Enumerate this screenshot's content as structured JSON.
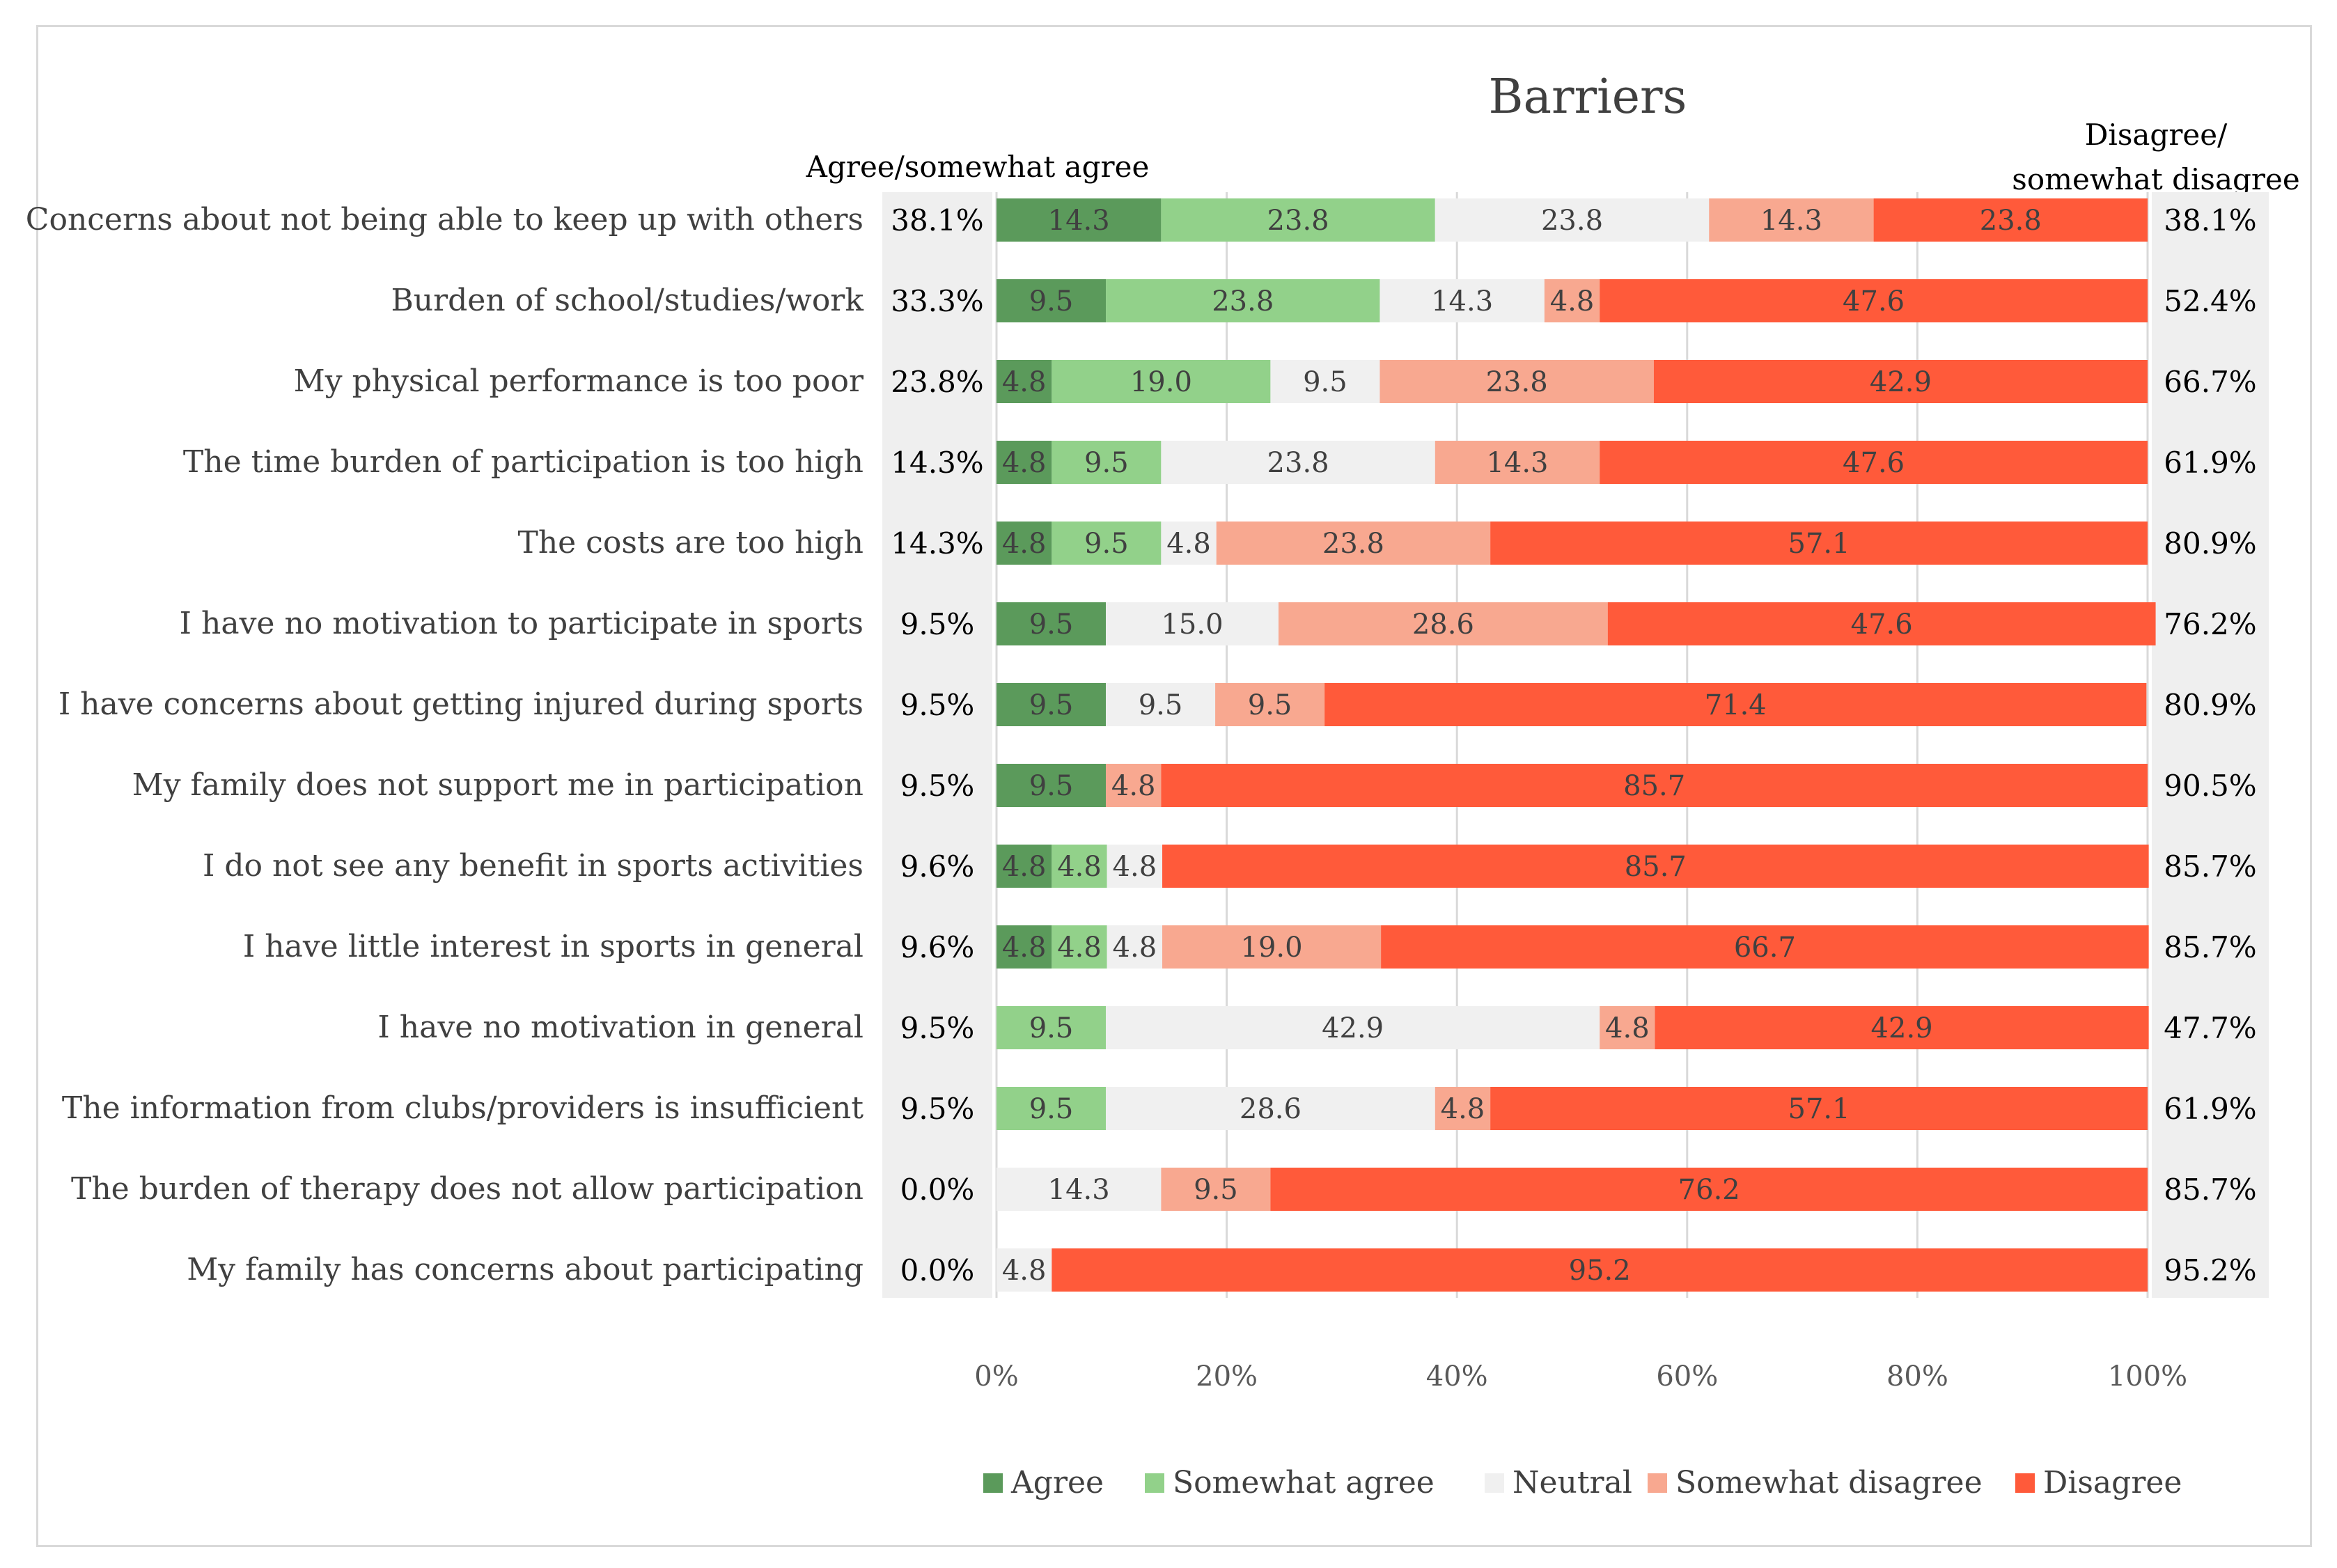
{
  "chart_data": {
    "type": "bar",
    "orientation": "horizontal-stacked-100",
    "title": "Barriers",
    "left_column_header": "Agree/somewhat agree",
    "right_column_header_lines": [
      "Disagree/",
      "somewhat disagree"
    ],
    "xlim": [
      0,
      100
    ],
    "x_ticks": [
      "0%",
      "20%",
      "40%",
      "60%",
      "80%",
      "100%"
    ],
    "grid": true,
    "legend_position": "bottom",
    "categories": [
      "Concerns about not being able to keep up with others",
      "Burden of school/studies/work",
      "My physical performance is too poor",
      "The time burden of participation is too high",
      "The costs are too high",
      "I have no motivation to participate in sports",
      "I have concerns about getting injured during sports",
      "My family does not support me in participation",
      "I do not see any benefit in sports activities",
      "I have little interest in sports in general",
      "I have no motivation in general",
      "The information from clubs/providers is insufficient",
      "The burden of therapy does not allow participation",
      "My family has concerns about participating"
    ],
    "series": [
      {
        "name": "Agree",
        "color": "#5b9a5b",
        "values": [
          14.3,
          9.5,
          4.8,
          4.8,
          4.8,
          9.5,
          9.5,
          9.5,
          4.8,
          4.8,
          0,
          0,
          0,
          0
        ]
      },
      {
        "name": "Somewhat agree",
        "color": "#92d18a",
        "values": [
          23.8,
          23.8,
          19.0,
          9.5,
          9.5,
          0,
          0,
          0,
          4.8,
          4.8,
          9.5,
          9.5,
          0,
          0
        ]
      },
      {
        "name": "Neutral",
        "color": "#f0f0f0",
        "values": [
          23.8,
          14.3,
          9.5,
          23.8,
          4.8,
          15.0,
          9.5,
          0,
          4.8,
          4.8,
          42.9,
          28.6,
          14.3,
          4.8
        ]
      },
      {
        "name": "Somewhat disagree",
        "color": "#f8a890",
        "values": [
          14.3,
          4.8,
          23.8,
          14.3,
          23.8,
          28.6,
          9.5,
          4.8,
          0,
          19.0,
          4.8,
          4.8,
          9.5,
          0
        ]
      },
      {
        "name": "Disagree",
        "color": "#ff5a3a",
        "values": [
          23.8,
          47.6,
          42.9,
          47.6,
          57.1,
          47.6,
          71.4,
          85.7,
          85.7,
          66.7,
          42.9,
          57.1,
          76.2,
          95.2
        ]
      }
    ],
    "agree_totals": [
      "38.1%",
      "33.3%",
      "23.8%",
      "14.3%",
      "14.3%",
      "9.5%",
      "9.5%",
      "9.5%",
      "9.6%",
      "9.6%",
      "9.5%",
      "9.5%",
      "0.0%",
      "0.0%"
    ],
    "disagree_totals": [
      "38.1%",
      "52.4%",
      "66.7%",
      "61.9%",
      "80.9%",
      "76.2%",
      "80.9%",
      "90.5%",
      "85.7%",
      "85.7%",
      "47.7%",
      "61.9%",
      "85.7%",
      "95.2%"
    ]
  }
}
